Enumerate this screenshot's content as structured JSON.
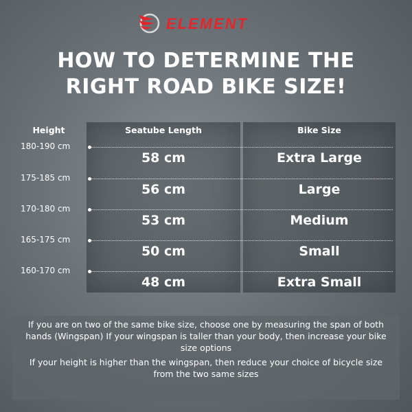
{
  "brand": {
    "logo_text": "ELEMENT",
    "logo_color": "#e3262c"
  },
  "title": {
    "line1": "HOW TO DETERMINE THE",
    "line2": "RIGHT ROAD BIKE SIZE!"
  },
  "table": {
    "headers": {
      "height": "Height",
      "seatube": "Seatube Length",
      "size": "Bike Size"
    },
    "rows": [
      {
        "height": "180-190 cm",
        "seatube": "58 cm",
        "size": "Extra Large"
      },
      {
        "height": "175-185 cm",
        "seatube": "56 cm",
        "size": "Large"
      },
      {
        "height": "170-180 cm",
        "seatube": "53 cm",
        "size": "Medium"
      },
      {
        "height": "165-175 cm",
        "seatube": "50 cm",
        "size": "Small"
      },
      {
        "height": "160-170 cm",
        "seatube": "48 cm",
        "size": "Extra Small"
      }
    ]
  },
  "notes": [
    "If you are on two of the same bike size, choose one by measuring the span of both hands (Wingspan) If your wingspan is taller than your body, then increase your bike size options",
    "If your height is higher than the wingspan, then reduce your choice of bicycle size from the two same sizes"
  ]
}
